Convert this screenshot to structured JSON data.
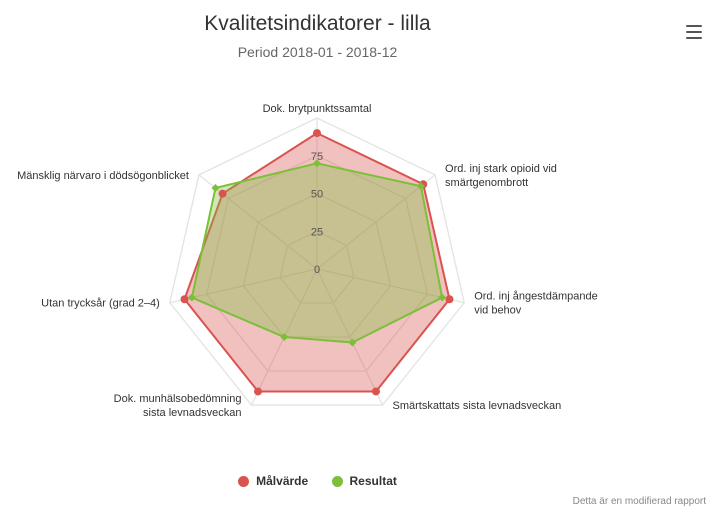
{
  "chart_data": {
    "type": "radar",
    "title": "Kvalitetsindikatorer - lilla",
    "subtitle": "Period 2018-01 - 2018-12",
    "categories": [
      [
        "Dok. brytpunktssamtal"
      ],
      [
        "Ord. inj stark opioid vid",
        "smärtgenombrott"
      ],
      [
        "Ord. inj ångestdämpande",
        "vid behov"
      ],
      [
        "Smärtskattats sista levnadsveckan"
      ],
      [
        "Dok. munhälsobedömning",
        "sista levnadsveckan"
      ],
      [
        "Utan trycksår (grad 2–4)"
      ],
      [
        "Mänsklig närvaro i dödsögonblicket"
      ]
    ],
    "ylim": [
      0,
      100
    ],
    "y_ticks": [
      0,
      25,
      50,
      75
    ],
    "series": [
      {
        "name": "Målvärde",
        "color": "#d9534f",
        "marker": "circle",
        "values": [
          90,
          90,
          90,
          90,
          90,
          90,
          80
        ]
      },
      {
        "name": "Resultat",
        "color": "#7cbf3a",
        "marker": "diamond",
        "values": [
          70,
          88,
          85,
          54,
          50,
          85,
          86
        ]
      }
    ],
    "legend_position": "bottom"
  },
  "menu": {
    "icon": "hamburger-menu-icon"
  },
  "credits": "Detta är en modifierad rapport"
}
